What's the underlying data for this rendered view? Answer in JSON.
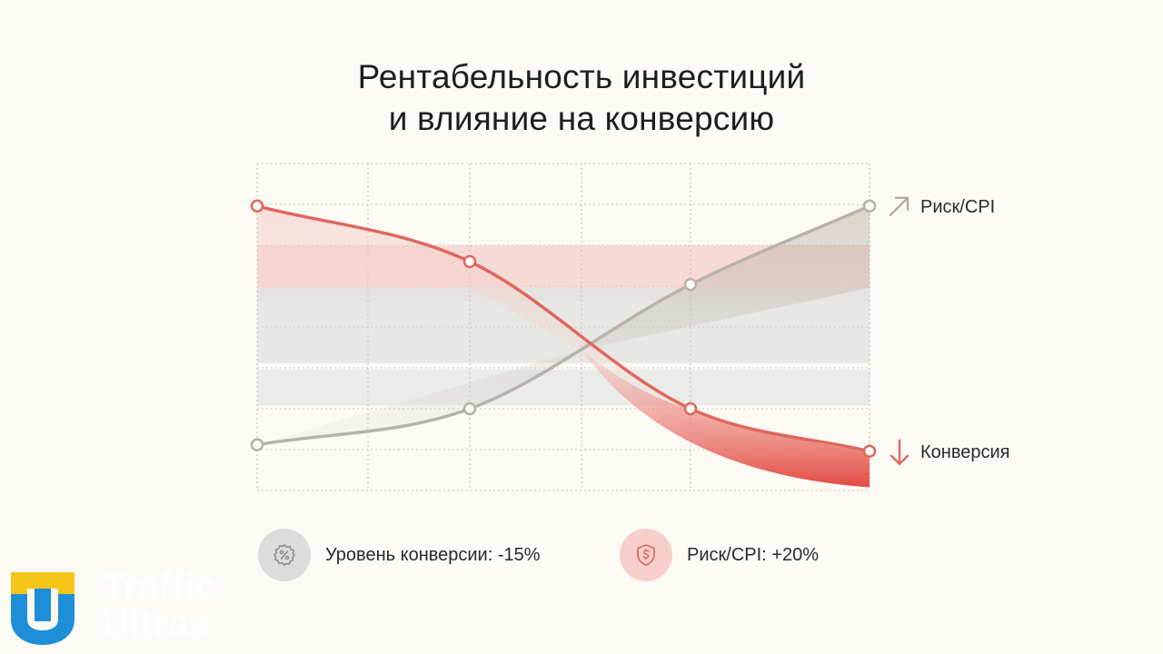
{
  "chart_data": {
    "type": "line",
    "title": [
      "Рентабельность инвестиций",
      "и влияние на конверсию"
    ],
    "x": [
      0,
      1,
      2,
      3
    ],
    "ylim": [
      0,
      100
    ],
    "grid": true,
    "series": [
      {
        "name": "Риск/CPI",
        "values": [
          14,
          25,
          63,
          87
        ],
        "color": "#b9b1ab",
        "trend": "up"
      },
      {
        "name": "Конверсия",
        "values": [
          87,
          70,
          25,
          12
        ],
        "color": "#e0675e",
        "trend": "down"
      }
    ],
    "bands": [
      {
        "y0": 58,
        "y1": 75,
        "color": "#f6d4d0"
      },
      {
        "y0": 39,
        "y1": 62,
        "color": "#e3e3e1"
      },
      {
        "y0": 26,
        "y1": 37,
        "color": "#e8e8e6"
      }
    ]
  },
  "legend": [
    {
      "label": "Уровень конверсии: -15%",
      "icon": "percent-gear-icon",
      "bg": "#dddcd8",
      "stroke": "#9a9792"
    },
    {
      "label": "Риск/CPI: +20%",
      "icon": "dollar-shield-icon",
      "bg": "#f6cfcb",
      "stroke": "#d9685f"
    }
  ],
  "logo": {
    "line1": "Traffic",
    "line2": "Ultras",
    "colors": {
      "yellow": "#f6c51b",
      "blue": "#1f8ed8"
    }
  }
}
